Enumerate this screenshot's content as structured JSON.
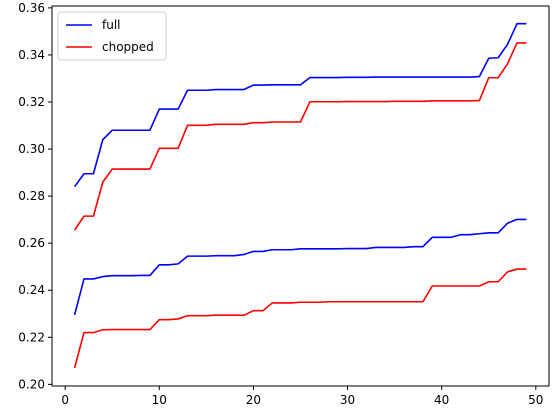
{
  "chart_data": {
    "type": "line",
    "title": "",
    "xlabel": "",
    "ylabel": "",
    "xlim": [
      -1.4,
      51.4
    ],
    "ylim": [
      0.1993,
      0.3608
    ],
    "xticks": [
      0,
      10,
      20,
      30,
      40,
      50
    ],
    "yticks": [
      0.2,
      0.22,
      0.24,
      0.26,
      0.28,
      0.3,
      0.32,
      0.34,
      0.36
    ],
    "grid": false,
    "legend": {
      "position": "top-left",
      "entries": [
        {
          "label": "full",
          "color": "#0000ff"
        },
        {
          "label": "chopped",
          "color": "#ff0000"
        }
      ]
    },
    "series": [
      {
        "name": "full",
        "color": "#0000ff",
        "x": [
          1,
          2,
          3,
          4,
          5,
          6,
          7,
          8,
          9,
          10,
          11,
          12,
          13,
          14,
          15,
          16,
          17,
          18,
          19,
          20,
          21,
          22,
          23,
          24,
          25,
          26,
          27,
          28,
          29,
          30,
          31,
          32,
          33,
          34,
          35,
          36,
          37,
          38,
          39,
          40,
          41,
          42,
          43,
          44,
          45,
          46,
          47,
          48,
          49
        ],
        "values": [
          0.284,
          0.2895,
          0.2895,
          0.304,
          0.308,
          0.308,
          0.308,
          0.308,
          0.308,
          0.317,
          0.317,
          0.317,
          0.325,
          0.325,
          0.325,
          0.3253,
          0.3253,
          0.3253,
          0.3253,
          0.3272,
          0.3272,
          0.3273,
          0.3273,
          0.3273,
          0.3273,
          0.3304,
          0.3304,
          0.3304,
          0.3304,
          0.3305,
          0.3305,
          0.3305,
          0.3306,
          0.3306,
          0.3306,
          0.3306,
          0.3306,
          0.3306,
          0.3306,
          0.3306,
          0.3306,
          0.3306,
          0.3306,
          0.3308,
          0.3386,
          0.3388,
          0.3445,
          0.3533,
          0.3533
        ]
      },
      {
        "name": "chopped",
        "color": "#ff0000",
        "x": [
          1,
          2,
          3,
          4,
          5,
          6,
          7,
          8,
          9,
          10,
          11,
          12,
          13,
          14,
          15,
          16,
          17,
          18,
          19,
          20,
          21,
          22,
          23,
          24,
          25,
          26,
          27,
          28,
          29,
          30,
          31,
          32,
          33,
          34,
          35,
          36,
          37,
          38,
          39,
          40,
          41,
          42,
          43,
          44,
          45,
          46,
          47,
          48,
          49
        ],
        "values": [
          0.2655,
          0.2715,
          0.2715,
          0.286,
          0.2915,
          0.2915,
          0.2915,
          0.2915,
          0.2915,
          0.3003,
          0.3003,
          0.3003,
          0.3101,
          0.3101,
          0.3101,
          0.3105,
          0.3105,
          0.3105,
          0.3105,
          0.3112,
          0.3112,
          0.3115,
          0.3115,
          0.3115,
          0.3115,
          0.3201,
          0.3201,
          0.3201,
          0.3201,
          0.3202,
          0.3202,
          0.3202,
          0.3202,
          0.3202,
          0.3203,
          0.3203,
          0.3203,
          0.3203,
          0.3205,
          0.3205,
          0.3205,
          0.3205,
          0.3205,
          0.3206,
          0.3303,
          0.3303,
          0.3363,
          0.3451,
          0.3451
        ]
      },
      {
        "color": "#0000ff",
        "x": [
          1,
          2,
          3,
          4,
          5,
          6,
          7,
          8,
          9,
          10,
          11,
          12,
          13,
          14,
          15,
          16,
          17,
          18,
          19,
          20,
          21,
          22,
          23,
          24,
          25,
          26,
          27,
          28,
          29,
          30,
          31,
          32,
          33,
          34,
          35,
          36,
          37,
          38,
          39,
          40,
          41,
          42,
          43,
          44,
          45,
          46,
          47,
          48,
          49
        ],
        "values": [
          0.2295,
          0.2448,
          0.2448,
          0.2458,
          0.2462,
          0.2462,
          0.2462,
          0.2463,
          0.2463,
          0.2508,
          0.2508,
          0.2512,
          0.2545,
          0.2545,
          0.2545,
          0.2547,
          0.2547,
          0.2547,
          0.2552,
          0.2565,
          0.2565,
          0.2572,
          0.2572,
          0.2572,
          0.2576,
          0.2576,
          0.2576,
          0.2576,
          0.2576,
          0.2577,
          0.2577,
          0.2577,
          0.2582,
          0.2582,
          0.2582,
          0.2582,
          0.2585,
          0.2585,
          0.2625,
          0.2625,
          0.2625,
          0.2636,
          0.2636,
          0.264,
          0.2644,
          0.2644,
          0.2685,
          0.2701,
          0.2701
        ]
      },
      {
        "color": "#ff0000",
        "x": [
          1,
          2,
          3,
          4,
          5,
          6,
          7,
          8,
          9,
          10,
          11,
          12,
          13,
          14,
          15,
          16,
          17,
          18,
          19,
          20,
          21,
          22,
          23,
          24,
          25,
          26,
          27,
          28,
          29,
          30,
          31,
          32,
          33,
          34,
          35,
          36,
          37,
          38,
          39,
          40,
          41,
          42,
          43,
          44,
          45,
          46,
          47,
          48,
          49
        ],
        "values": [
          0.207,
          0.222,
          0.222,
          0.2232,
          0.2233,
          0.2233,
          0.2233,
          0.2233,
          0.2233,
          0.2275,
          0.2275,
          0.2278,
          0.2292,
          0.2292,
          0.2292,
          0.2294,
          0.2294,
          0.2294,
          0.2294,
          0.2313,
          0.2313,
          0.2346,
          0.2346,
          0.2346,
          0.2349,
          0.2349,
          0.2349,
          0.2351,
          0.2351,
          0.2351,
          0.2351,
          0.2351,
          0.2351,
          0.2351,
          0.2351,
          0.2351,
          0.2351,
          0.2351,
          0.2418,
          0.2418,
          0.2418,
          0.2418,
          0.2418,
          0.2418,
          0.2436,
          0.2436,
          0.2478,
          0.249,
          0.249
        ]
      }
    ]
  }
}
